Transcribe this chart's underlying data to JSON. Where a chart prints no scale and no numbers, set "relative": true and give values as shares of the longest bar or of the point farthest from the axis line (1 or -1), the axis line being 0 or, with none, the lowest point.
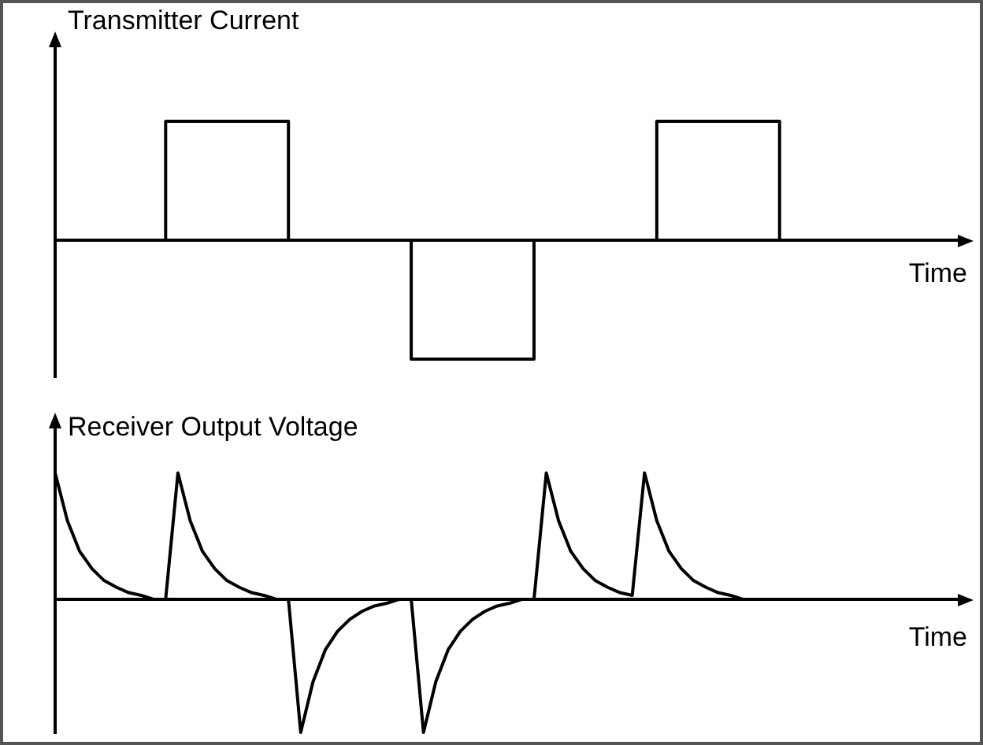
{
  "chart_data": [
    {
      "type": "step",
      "title": "Transmitter Current",
      "xlabel": "Time",
      "relative": true,
      "marker": "none",
      "color": "#000000",
      "categories": [
        null,
        null,
        null,
        null,
        null,
        null,
        null,
        null,
        null,
        null,
        null,
        null,
        null,
        null,
        null,
        null,
        null,
        null,
        null,
        null,
        null,
        null,
        null,
        null,
        null,
        null,
        null,
        null,
        null,
        null,
        null,
        null,
        null,
        null,
        null,
        null,
        null,
        null,
        null,
        null,
        null,
        null,
        null,
        null,
        null,
        null,
        null,
        null,
        null,
        null,
        null,
        null,
        null,
        null,
        null,
        null,
        null,
        null,
        null,
        null,
        null,
        null,
        null,
        null,
        null,
        null,
        null,
        null,
        null,
        null,
        null,
        null,
        null,
        null
      ],
      "values": [
        0,
        0,
        0,
        0,
        0,
        0,
        0,
        0,
        0,
        0,
        1,
        1,
        1,
        1,
        1,
        1,
        1,
        1,
        1,
        1,
        0,
        0,
        0,
        0,
        0,
        0,
        0,
        0,
        0,
        0,
        -1,
        -1,
        -1,
        -1,
        -1,
        -1,
        -1,
        -1,
        -1,
        -1,
        0,
        0,
        0,
        0,
        0,
        0,
        0,
        0,
        0,
        0,
        1,
        1,
        1,
        1,
        1,
        1,
        1,
        1,
        1,
        1,
        0,
        0,
        0,
        0,
        0,
        0,
        0,
        0,
        0,
        0,
        0,
        0,
        0,
        0
      ]
    },
    {
      "type": "line",
      "title": "Receiver Output Voltage",
      "xlabel": "Time",
      "relative": true,
      "marker": "none",
      "color": "#000000",
      "categories": [
        null,
        null,
        null,
        null,
        null,
        null,
        null,
        null,
        null,
        null,
        null,
        null,
        null,
        null,
        null,
        null,
        null,
        null,
        null,
        null,
        null,
        null,
        null,
        null,
        null,
        null,
        null,
        null,
        null,
        null,
        null,
        null,
        null,
        null,
        null,
        null,
        null,
        null,
        null,
        null,
        null,
        null,
        null,
        null,
        null,
        null,
        null,
        null,
        null,
        null,
        null,
        null,
        null,
        null,
        null,
        null,
        null,
        null,
        null,
        null,
        null,
        null,
        null,
        null,
        null,
        null,
        null,
        null,
        null,
        null,
        null,
        null,
        null,
        null
      ],
      "values": [
        0.95,
        0.59,
        0.36,
        0.23,
        0.14,
        0.09,
        0.05,
        0.03,
        0,
        0,
        0.95,
        0.59,
        0.36,
        0.23,
        0.14,
        0.09,
        0.05,
        0.03,
        0,
        0,
        -1,
        -0.62,
        -0.38,
        -0.24,
        -0.15,
        -0.09,
        -0.05,
        -0.03,
        0,
        0,
        -1,
        -0.62,
        -0.38,
        -0.24,
        -0.15,
        -0.09,
        -0.05,
        -0.03,
        0,
        0,
        0.95,
        0.59,
        0.36,
        0.23,
        0.14,
        0.09,
        0.05,
        0.03,
        0.95,
        0.59,
        0.36,
        0.23,
        0.14,
        0.09,
        0.05,
        0.03,
        0,
        0,
        0,
        0,
        0,
        0,
        0,
        0,
        0,
        0,
        0,
        0,
        0,
        0,
        0,
        0,
        0,
        0
      ]
    }
  ]
}
